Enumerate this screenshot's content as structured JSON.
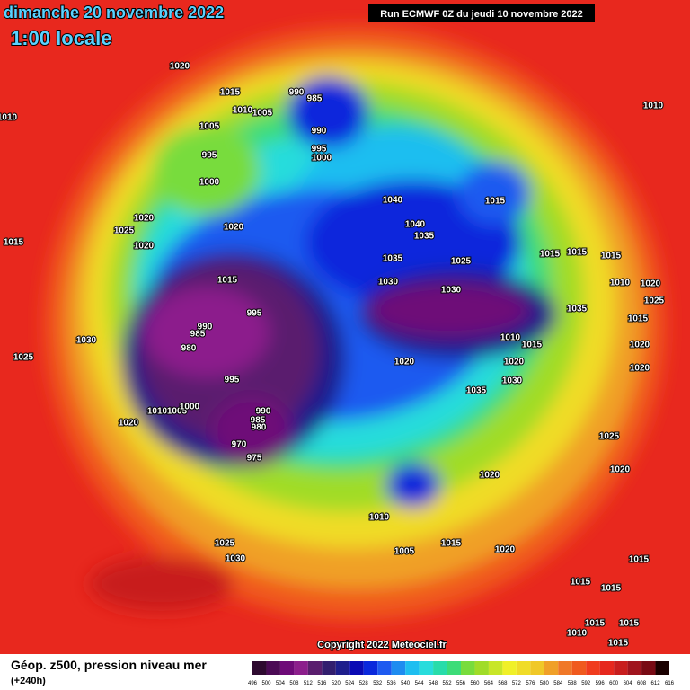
{
  "header": {
    "date": "dimanche 20 novembre 2022",
    "time": "1:00 locale",
    "run": "Run ECMWF 0Z du jeudi 10 novembre 2022"
  },
  "copyright": "Copyright 2022 Meteociel.fr",
  "footer": {
    "title": "Géop. z500, pression niveau mer",
    "lead": "(+240h)"
  },
  "legend": {
    "levels": [
      "496",
      "500",
      "504",
      "508",
      "512",
      "516",
      "520",
      "524",
      "528",
      "532",
      "536",
      "540",
      "544",
      "548",
      "552",
      "556",
      "560",
      "564",
      "568",
      "572",
      "576",
      "580",
      "584",
      "588",
      "592",
      "596",
      "600",
      "604",
      "608",
      "612",
      "616"
    ],
    "colors": [
      "#2e0a30",
      "#4b0a55",
      "#6e0a78",
      "#8c1e8c",
      "#5a1e6e",
      "#321e6e",
      "#1e1e8c",
      "#0a0ab4",
      "#0a28dc",
      "#1e5af0",
      "#1e8cf0",
      "#1ebef0",
      "#28dcdc",
      "#28dcaa",
      "#3cdc78",
      "#78dc3c",
      "#a0dc28",
      "#c8e628",
      "#f0f028",
      "#f0dc28",
      "#f0c828",
      "#f0a028",
      "#f07828",
      "#f05a1e",
      "#f03c1e",
      "#e6281e",
      "#c81e1e",
      "#a0141e",
      "#780a14",
      "#1a0000"
    ]
  },
  "isobar_labels": [
    "1020",
    "1015",
    "990",
    "985",
    "1010",
    "1005",
    "1005",
    "990",
    "995",
    "1000",
    "995",
    "1000",
    "1010",
    "1010",
    "1040",
    "1040",
    "1035",
    "1015",
    "1020",
    "1020",
    "1025",
    "1020",
    "1015",
    "1035",
    "1025",
    "1015",
    "1015",
    "1015",
    "1030",
    "1030",
    "1015",
    "995",
    "990",
    "985",
    "980",
    "1030",
    "1025",
    "1035",
    "1010",
    "1015",
    "1020",
    "1020",
    "995",
    "1030",
    "1035",
    "1010",
    "1005",
    "1000",
    "990",
    "985",
    "980",
    "970",
    "975",
    "1020",
    "1025",
    "1020",
    "1020",
    "1010",
    "1025",
    "1030",
    "1005",
    "1015",
    "1020",
    "1015",
    "1015",
    "1020",
    "1020",
    "1015",
    "1025",
    "1010",
    "1020",
    "1015",
    "1015",
    "1015",
    "1010",
    "1015"
  ]
}
